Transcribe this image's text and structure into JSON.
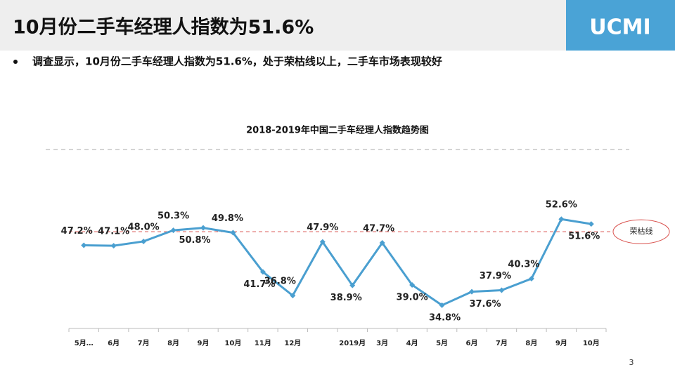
{
  "header": {
    "title": "10月份二手车经理人指数为51.6%",
    "brand": "UCMI"
  },
  "bullet": "调查显示，10月份二手车经理人指数为51.6%，处于荣枯线以上，二手车市场表现较好",
  "chart_data": {
    "type": "line",
    "title": "2018-2019年中国二手车经理人指数趋势图",
    "categories": [
      "5月…",
      "6月",
      "7月",
      "8月",
      "9月",
      "10月",
      "11月",
      "12月",
      null,
      "2019月",
      "3月",
      "4月",
      "5月",
      "6月",
      "7月",
      "8月",
      "9月",
      "10月"
    ],
    "series": [
      {
        "name": "二手车经理人指数",
        "color": "#4a9fd0",
        "values": [
          47.2,
          47.1,
          48.0,
          50.3,
          50.8,
          49.8,
          41.7,
          36.8,
          47.9,
          38.9,
          47.7,
          39.0,
          34.8,
          37.6,
          37.9,
          40.3,
          52.6,
          51.6
        ],
        "value_labels": [
          "47.2%",
          "47.1%",
          "48.0%",
          "50.3%",
          "50.8%",
          "49.8%",
          "41.7%",
          "36.8%",
          "47.9%",
          "38.9%",
          "47.7%",
          "39.0%",
          "34.8%",
          "37.6%",
          "37.9%",
          "40.3%",
          "52.6%",
          "51.6%"
        ]
      }
    ],
    "ylim": [
      30,
      67
    ],
    "reference_line": {
      "value": 50,
      "label": "荣枯线",
      "color": "#d9534f"
    }
  },
  "page_number": "3"
}
